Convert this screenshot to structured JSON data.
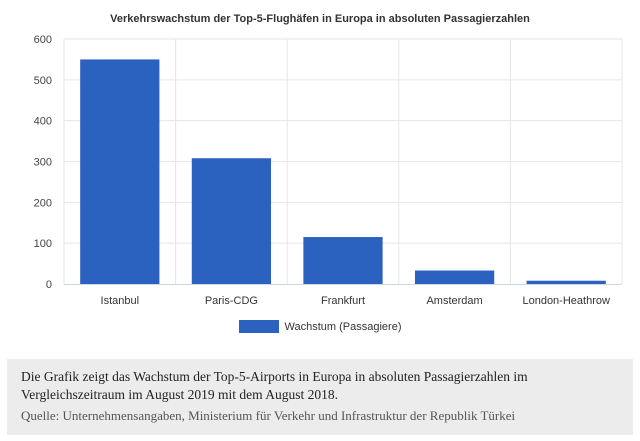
{
  "chart_data": {
    "type": "bar",
    "title": "Verkehrswachstum der Top-5-Flughäfen in Europa in absoluten Passagierzahlen",
    "categories": [
      "Istanbul",
      "Paris-CDG",
      "Frankfurt",
      "Amsterdam",
      "London-Heathrow"
    ],
    "series": [
      {
        "name": "Wachstum (Passagiere)",
        "values": [
          550,
          308,
          115,
          33,
          8
        ]
      }
    ],
    "ylim": [
      0,
      600
    ],
    "yticks": [
      0,
      100,
      200,
      300,
      400,
      500,
      600
    ],
    "grid": true,
    "legend": "bottom",
    "bar_color": "#2b62c0",
    "grid_color": "#e6e6e6",
    "axis_color": "#ccd6eb"
  },
  "caption": {
    "text": "Die Grafik zeigt das Wachstum der Top-5-Airports in Europa in absoluten Passagierzahlen im Vergleichszeitraum im August 2019 mit dem August 2018.",
    "source": "Quelle: Unternehmensangaben, Ministerium für Verkehr und Infrastruktur der Republik Türkei"
  }
}
